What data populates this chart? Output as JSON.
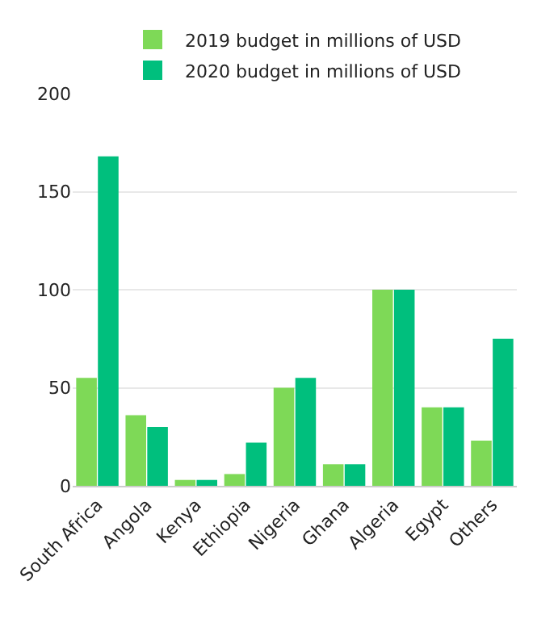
{
  "chart_data": {
    "type": "bar",
    "categories": [
      "South Africa",
      "Angola",
      "Kenya",
      "Ethiopia",
      "Nigeria",
      "Ghana",
      "Algeria",
      "Egypt",
      "Others"
    ],
    "series": [
      {
        "name": "2019 budget in millions of USD",
        "color": "#7ed957",
        "values": [
          55,
          36,
          3,
          6,
          50,
          11,
          100,
          40,
          23
        ]
      },
      {
        "name": "2020 budget in millions of USD",
        "color": "#00bf7d",
        "values": [
          168,
          30,
          3,
          22,
          55,
          11,
          100,
          40,
          75
        ]
      }
    ],
    "ylim": [
      0,
      200
    ],
    "yticks": [
      0,
      50,
      100,
      150,
      200
    ],
    "grid": "y",
    "legend": "top"
  }
}
